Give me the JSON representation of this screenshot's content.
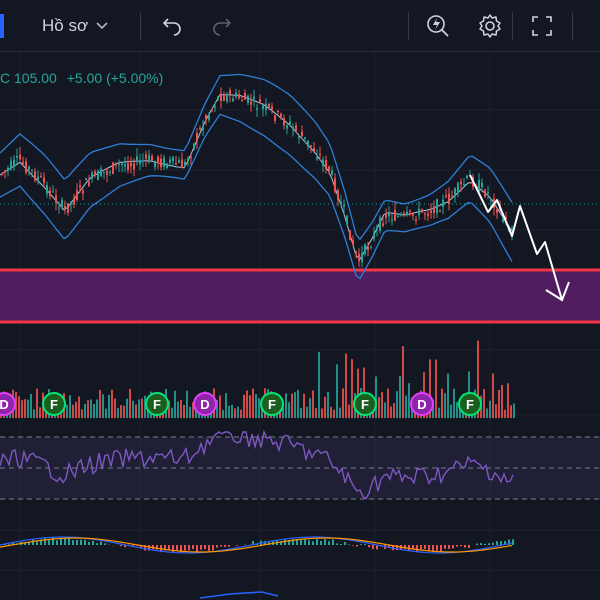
{
  "toolbar": {
    "profile_label": "Hồ sơ",
    "icons": [
      "chevron-down-icon",
      "undo-icon",
      "redo-icon",
      "lightning-search-icon",
      "gear-icon",
      "fullscreen-icon"
    ]
  },
  "legend": {
    "prefix": "C",
    "price": "105.00",
    "change": "+5.00",
    "change_pct": "(+5.00%)"
  },
  "markers": [
    "D",
    "F",
    "F",
    "D",
    "F",
    "F",
    "D",
    "F"
  ],
  "colors": {
    "background": "#131722",
    "up": "#26a69a",
    "down": "#ef5350",
    "band": "#2f7fd8",
    "zone_fill": "#5a1f6b",
    "zone_border": "#f23645",
    "rsi": "#7e57c2",
    "macd": "#2962ff",
    "signal": "#ff9800",
    "marker_f": "#1b5e20",
    "marker_d": "#8e24aa"
  }
}
